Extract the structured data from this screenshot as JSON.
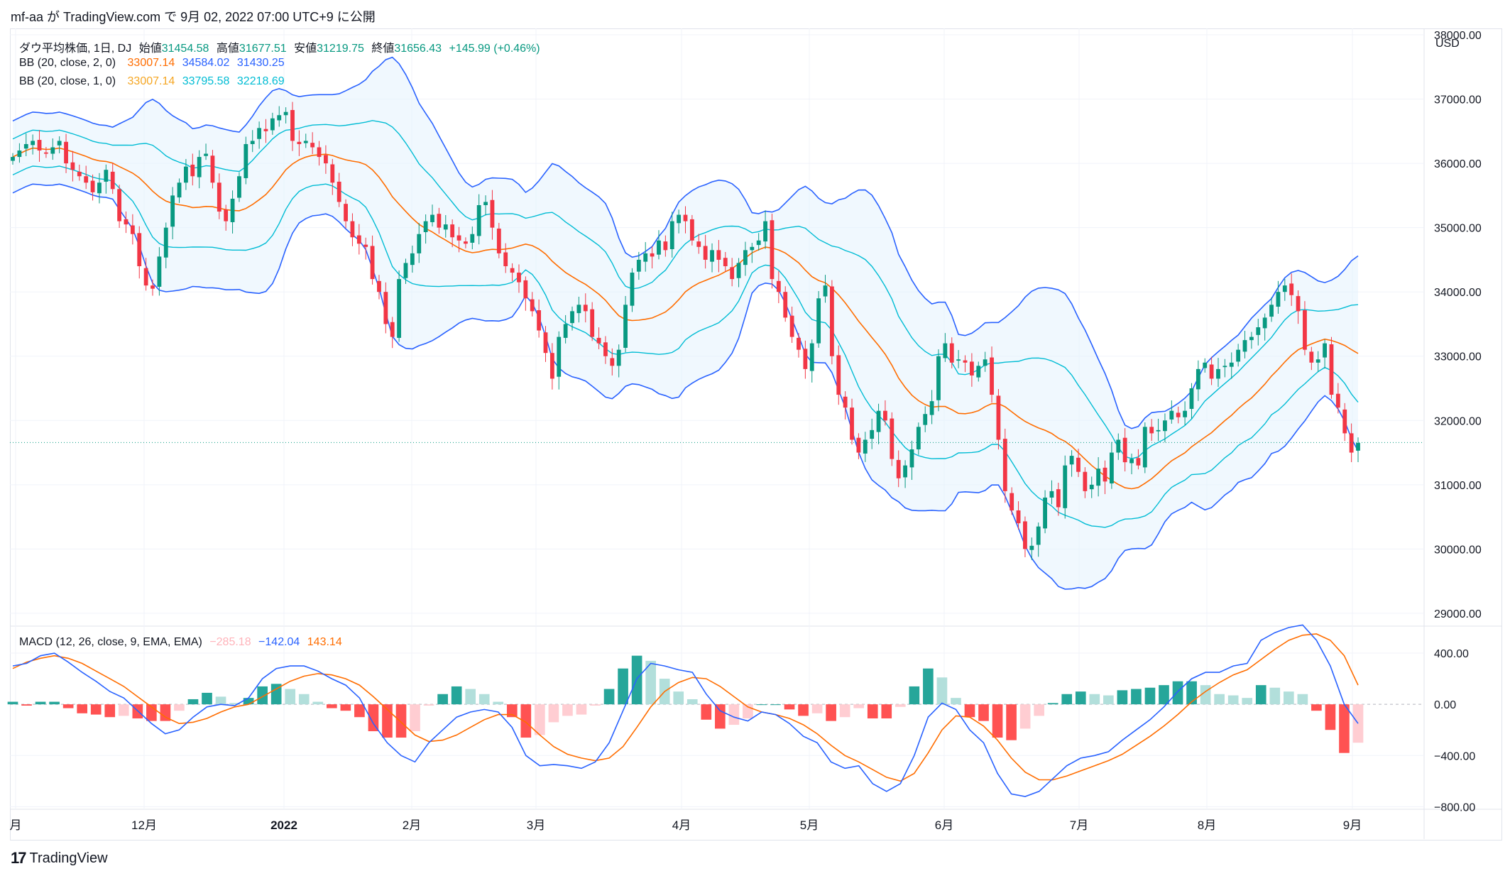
{
  "header": {
    "text": "mf-aa が TradingView.com で 9月 02, 2022 07:00 UTC+9 に公開"
  },
  "legend": {
    "symbol": "ダウ平均株価, 1日, DJ",
    "open_label": "始値",
    "open": "31454.58",
    "high_label": "高値",
    "high": "31677.51",
    "low_label": "安値",
    "low": "31219.75",
    "close_label": "終値",
    "close": "31656.43",
    "change": "+145.99 (+0.46%)",
    "bb2_label": "BB (20, close, 2, 0)",
    "bb2_basis": "33007.14",
    "bb2_upper": "34584.02",
    "bb2_lower": "31430.25",
    "bb1_label": "BB (20, close, 1, 0)",
    "bb1_basis": "33007.14",
    "bb1_upper": "33795.58",
    "bb1_lower": "32218.69",
    "macd_label": "MACD (12, 26, close, 9, EMA, EMA)",
    "macd_hist": "−285.18",
    "macd_line": "−142.04",
    "macd_signal": "143.14"
  },
  "footer": {
    "brand": "TradingView",
    "logo": "17"
  },
  "colors": {
    "up": "#089981",
    "down": "#f23645",
    "bb2": "#2962ff",
    "bb1": "#00bcd4",
    "basis": "#ff6d00",
    "fill": "#e3f2fd",
    "hist_up": "#26a69a",
    "hist_up_light": "#b2dfdb",
    "hist_down": "#ff5252",
    "hist_down_light": "#ffcdd2"
  },
  "chart_data": [
    {
      "type": "candlestick",
      "currency": "USD",
      "y_ticks": [
        "29000.00",
        "30000.00",
        "31000.00",
        "32000.00",
        "33000.00",
        "34000.00",
        "35000.00",
        "36000.00",
        "37000.00",
        "38000.00"
      ],
      "ylim": [
        28800,
        38100
      ],
      "x_ticks": [
        "月",
        "12月",
        "2022",
        "2月",
        "3月",
        "4月",
        "5月",
        "6月",
        "7月",
        "8月",
        "9月"
      ],
      "last_close": 31656.43,
      "closes": [
        36100,
        36200,
        36300,
        36350,
        36200,
        36150,
        36250,
        36350,
        36000,
        35900,
        35800,
        35700,
        35550,
        35700,
        35900,
        35600,
        35100,
        35050,
        34900,
        34400,
        34100,
        34050,
        34550,
        35000,
        35500,
        35700,
        35950,
        35800,
        36100,
        36150,
        35700,
        35250,
        35100,
        35450,
        35800,
        36300,
        36350,
        36550,
        36500,
        36700,
        36750,
        36800,
        36350,
        36300,
        36350,
        36250,
        36100,
        36000,
        35700,
        35400,
        35100,
        34850,
        34750,
        34700,
        34200,
        34000,
        33500,
        33300,
        34200,
        34450,
        34600,
        34900,
        35100,
        35200,
        35000,
        35050,
        34850,
        34800,
        34750,
        34900,
        35350,
        35400,
        35000,
        34600,
        34400,
        34300,
        34150,
        33900,
        33700,
        33400,
        33050,
        32650,
        33300,
        33500,
        33700,
        33800,
        33700,
        33300,
        33200,
        33000,
        32850,
        33100,
        33800,
        34300,
        34500,
        34600,
        34550,
        34800,
        34650,
        35100,
        35200,
        35100,
        34800,
        34700,
        34500,
        34650,
        34500,
        34400,
        34200,
        34450,
        34650,
        34700,
        34800,
        35100,
        34200,
        34000,
        33600,
        33300,
        33100,
        32800,
        33200,
        33900,
        34100,
        33000,
        32400,
        32200,
        31700,
        31500,
        31700,
        31850,
        32150,
        32000,
        31400,
        31100,
        31300,
        31550,
        31900,
        32100,
        32300,
        33000,
        33200,
        32900,
        32950,
        32900,
        32700,
        32850,
        32950,
        32400,
        31700,
        30900,
        30600,
        30400,
        30000,
        30050,
        30350,
        30800,
        30900,
        30650,
        31300,
        31450,
        31200,
        30900,
        31000,
        31250,
        31050,
        31500,
        31700,
        31350,
        31400,
        31300,
        31900,
        31800,
        31850,
        32000,
        32150,
        32050,
        32150,
        32500,
        32800,
        32900,
        32650,
        32800,
        32850,
        32900,
        33100,
        33250,
        33300,
        33450,
        33600,
        33800,
        34000,
        34100,
        33950,
        33700,
        33100,
        32900,
        32950,
        33200,
        32400,
        32200,
        31800,
        31500,
        31650
      ]
    },
    {
      "type": "bar+line",
      "title": "MACD (12, 26, close, 9, EMA, EMA)",
      "y_ticks": [
        "400.00",
        "0.00",
        "−400.00",
        "−800.00"
      ],
      "ylim": [
        -820,
        600
      ],
      "macd_line": [
        300,
        320,
        380,
        400,
        330,
        250,
        180,
        100,
        50,
        -50,
        -150,
        -230,
        -200,
        -100,
        -20,
        0,
        -10,
        50,
        200,
        280,
        300,
        300,
        260,
        200,
        150,
        50,
        -150,
        -300,
        -400,
        -450,
        -300,
        -200,
        -100,
        -60,
        -40,
        -60,
        -180,
        -400,
        -480,
        -470,
        -480,
        -500,
        -450,
        -300,
        -50,
        200,
        320,
        300,
        270,
        250,
        80,
        -50,
        -100,
        -130,
        -60,
        -80,
        -150,
        -250,
        -300,
        -450,
        -500,
        -480,
        -620,
        -680,
        -620,
        -400,
        -100,
        10,
        -40,
        -200,
        -300,
        -540,
        -700,
        -720,
        -680,
        -580,
        -480,
        -420,
        -400,
        -370,
        -280,
        -200,
        -120,
        -20,
        100,
        200,
        250,
        250,
        300,
        320,
        500,
        560,
        600,
        620,
        500,
        300,
        0,
        -150
      ],
      "signal_line": [
        280,
        330,
        360,
        380,
        360,
        320,
        260,
        200,
        140,
        60,
        -20,
        -100,
        -150,
        -140,
        -110,
        -60,
        -20,
        0,
        60,
        120,
        180,
        220,
        240,
        230,
        200,
        150,
        60,
        -40,
        -140,
        -240,
        -290,
        -280,
        -240,
        -180,
        -120,
        -80,
        -80,
        -140,
        -240,
        -330,
        -390,
        -420,
        -440,
        -420,
        -330,
        -180,
        -20,
        100,
        170,
        210,
        200,
        140,
        60,
        -20,
        -60,
        -80,
        -110,
        -160,
        -230,
        -320,
        -400,
        -450,
        -510,
        -570,
        -600,
        -540,
        -380,
        -200,
        -90,
        -100,
        -170,
        -280,
        -420,
        -530,
        -590,
        -590,
        -560,
        -520,
        -480,
        -440,
        -390,
        -320,
        -250,
        -170,
        -80,
        20,
        100,
        170,
        230,
        270,
        350,
        430,
        500,
        540,
        550,
        500,
        380,
        150
      ]
    }
  ]
}
